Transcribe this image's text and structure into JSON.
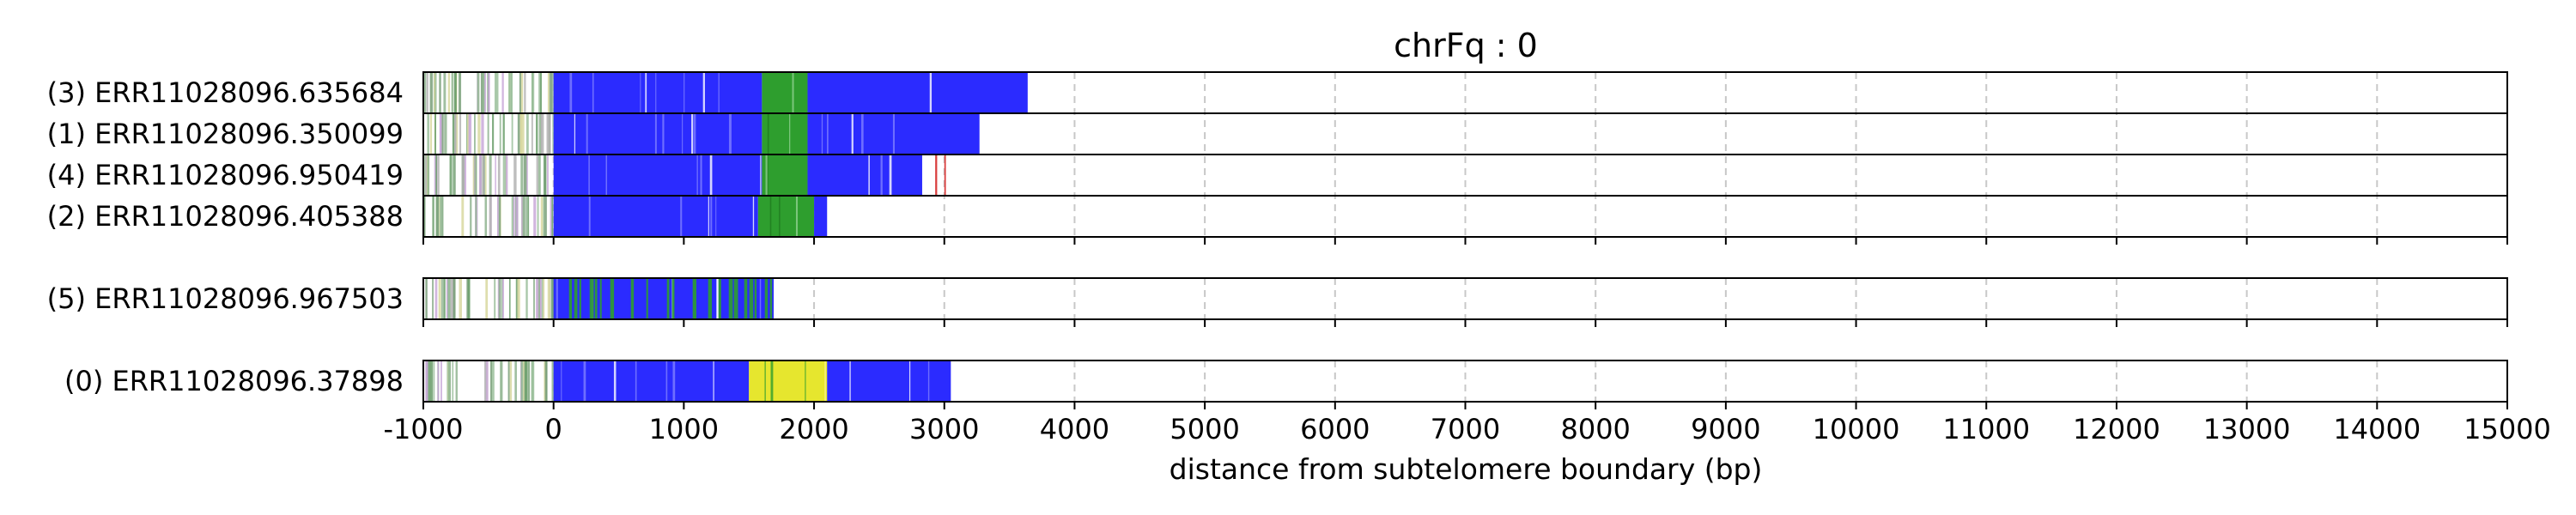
{
  "chart_data": {
    "type": "read-track",
    "title": "chrFq : 0",
    "xlabel": "distance from subtelomere boundary (bp)",
    "xlim": [
      -1000,
      15000
    ],
    "xticks": [
      -1000,
      0,
      1000,
      2000,
      3000,
      4000,
      5000,
      6000,
      7000,
      8000,
      9000,
      10000,
      11000,
      12000,
      13000,
      14000,
      15000
    ],
    "grid": "vertical dashed",
    "colors": {
      "blue": "#2b2bff",
      "green": "#2e9e2e",
      "yellow": "#e6e62e",
      "tan": "#f0e6a0",
      "red": "#d94040",
      "purple": "#8a2be2",
      "grey": "#b0b0b0"
    },
    "groups": [
      {
        "reads": [
          {
            "label": "(3) ERR11028096.635684",
            "start": -1000,
            "end": 3640,
            "segments": [
              {
                "start": 0,
                "end": 1600,
                "color": "blue"
              },
              {
                "start": 1600,
                "end": 1950,
                "color": "green"
              },
              {
                "start": 1950,
                "end": 3640,
                "color": "blue"
              }
            ]
          },
          {
            "label": "(1) ERR11028096.350099",
            "start": -1000,
            "end": 3270,
            "segments": [
              {
                "start": 0,
                "end": 1600,
                "color": "blue"
              },
              {
                "start": 1600,
                "end": 1950,
                "color": "green"
              },
              {
                "start": 1950,
                "end": 3270,
                "color": "blue"
              }
            ]
          },
          {
            "label": "(4) ERR11028096.950419",
            "start": -1000,
            "end": 2830,
            "segments": [
              {
                "start": 0,
                "end": 1600,
                "color": "blue"
              },
              {
                "start": 1600,
                "end": 1950,
                "color": "green"
              },
              {
                "start": 1950,
                "end": 2830,
                "color": "blue"
              },
              {
                "start": 2930,
                "end": 2945,
                "color": "red"
              },
              {
                "start": 3000,
                "end": 3012,
                "color": "red"
              }
            ]
          },
          {
            "label": "(2) ERR11028096.405388",
            "start": -1000,
            "end": 2100,
            "segments": [
              {
                "start": 0,
                "end": 1570,
                "color": "blue"
              },
              {
                "start": 1570,
                "end": 2000,
                "color": "green"
              },
              {
                "start": 2000,
                "end": 2100,
                "color": "blue"
              }
            ]
          }
        ]
      },
      {
        "reads": [
          {
            "label": "(5) ERR11028096.967503",
            "start": -1000,
            "end": 1690,
            "segments": [
              {
                "start": 0,
                "end": 1690,
                "color": "blue"
              },
              {
                "start": 0,
                "end": 1690,
                "color": "green",
                "stripes": true
              }
            ]
          }
        ]
      },
      {
        "reads": [
          {
            "label": "(0) ERR11028096.37898",
            "start": -1000,
            "end": 3050,
            "segments": [
              {
                "start": 0,
                "end": 1500,
                "color": "blue"
              },
              {
                "start": 1500,
                "end": 2100,
                "color": "yellow"
              },
              {
                "start": 2100,
                "end": 3050,
                "color": "blue"
              }
            ]
          }
        ]
      }
    ]
  }
}
